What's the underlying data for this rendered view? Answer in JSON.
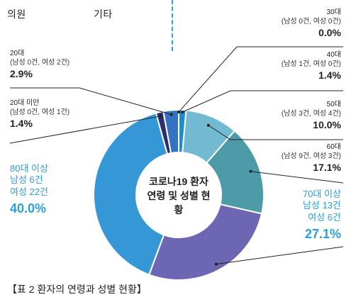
{
  "header": {
    "left": "의원",
    "middle": "기타"
  },
  "chart_data": {
    "type": "pie",
    "title": "코로나19 환자 연령 및 성별 현황",
    "caption": "【표 2 환자의 연령과 성별 현황】",
    "slices": [
      {
        "label": "30대",
        "detail": "(남성 0건, 여성 0건)",
        "pct_text": "0.0%",
        "value": 0.0,
        "color": "#3a66b0"
      },
      {
        "label": "40대",
        "detail": "(남성 1건, 여성 0건)",
        "pct_text": "1.4%",
        "value": 1.4,
        "color": "#1d8ccc"
      },
      {
        "label": "50대",
        "detail": "(남성 3건, 여성 4건)",
        "pct_text": "10.0%",
        "value": 10.0,
        "color": "#72b9d2"
      },
      {
        "label": "60대",
        "detail": "(남성 9건, 여성 3건)",
        "pct_text": "17.1%",
        "value": 17.1,
        "color": "#4d9aa8"
      },
      {
        "label": "70대 이상",
        "detail": "남성 13건\n여성 6건",
        "pct_text": "27.1%",
        "value": 27.1,
        "color": "#6d66b2"
      },
      {
        "label": "80대 이상",
        "detail": "남성 6건\n여성 22건",
        "pct_text": "40.0%",
        "value": 40.0,
        "color": "#3597d6"
      },
      {
        "label": "20대 미만",
        "detail": "(남성 0건, 여성 1건)",
        "pct_text": "1.4%",
        "value": 1.4,
        "color": "#2b2f6e"
      },
      {
        "label": "20대",
        "detail": "(남성 0건, 여성 2건)",
        "pct_text": "2.9%",
        "value": 2.9,
        "color": "#3672c2"
      }
    ]
  }
}
